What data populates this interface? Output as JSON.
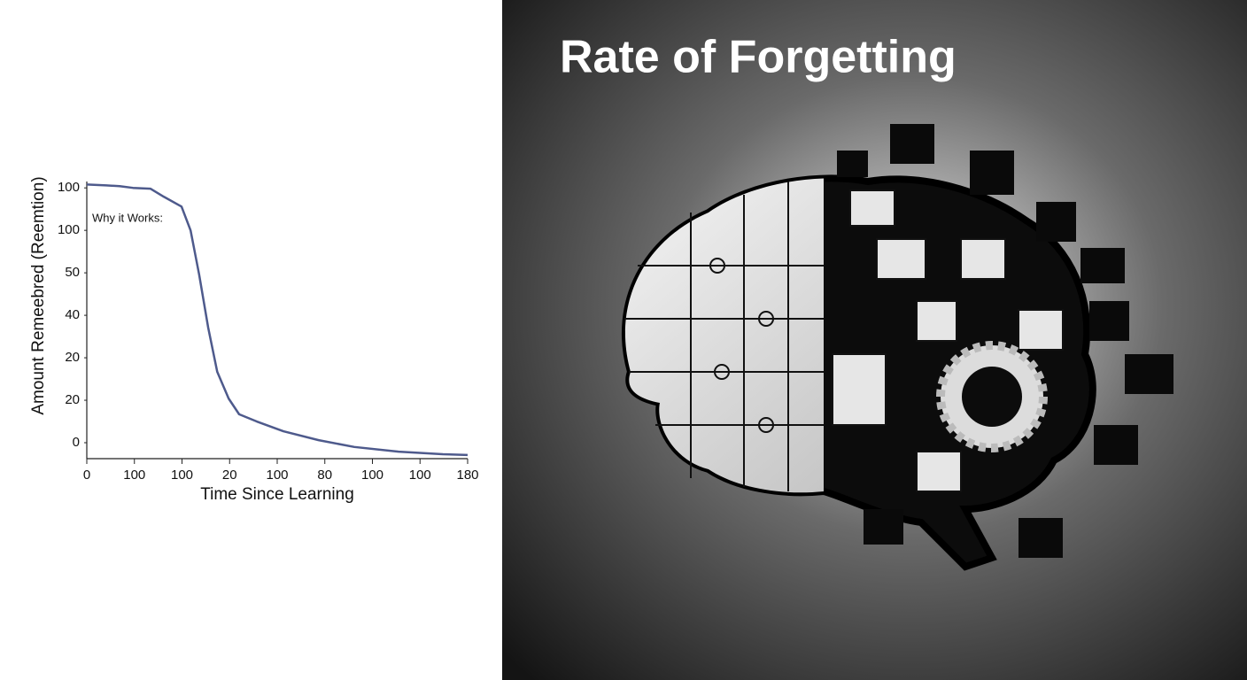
{
  "chart_data": {
    "type": "line",
    "title": "Rate of Forgetting",
    "annotation": "Why it Works:",
    "y_label": "Amount Remeebred (Reemtion)",
    "x_label": "Time Since Learning",
    "xlim": [
      0,
      8
    ],
    "xticks": [
      {
        "value": 0,
        "label": "0"
      },
      {
        "value": 1,
        "label": "100"
      },
      {
        "value": 2,
        "label": "100"
      },
      {
        "value": 3,
        "label": "20"
      },
      {
        "value": 4,
        "label": "100"
      },
      {
        "value": 5,
        "label": "80"
      },
      {
        "value": 6,
        "label": "100"
      },
      {
        "value": 7,
        "label": "100"
      },
      {
        "value": 8,
        "label": "180"
      }
    ],
    "ylim": [
      -0.375,
      6.15
    ],
    "yticks": [
      {
        "value": 0,
        "label": "0"
      },
      {
        "value": 1,
        "label": "20"
      },
      {
        "value": 2,
        "label": "20"
      },
      {
        "value": 3,
        "label": "40"
      },
      {
        "value": 4,
        "label": "50"
      },
      {
        "value": 5,
        "label": "100"
      },
      {
        "value": 6,
        "label": "100"
      }
    ],
    "x": [
      0,
      0.41,
      0.69,
      0.97,
      1.34,
      1.62,
      1.99,
      2.18,
      2.36,
      2.55,
      2.74,
      2.98,
      3.2,
      3.57,
      4.13,
      4.87,
      5.62,
      6.55,
      7.48,
      8.0
    ],
    "series": [
      {
        "color": "#4e5a8c",
        "values": [
          6.08,
          6.06,
          6.04,
          6.0,
          5.98,
          5.79,
          5.56,
          5.0,
          3.96,
          2.71,
          1.67,
          1.04,
          0.67,
          0.5,
          0.27,
          0.06,
          -0.1,
          -0.21,
          -0.27,
          -0.29
        ]
      }
    ]
  }
}
